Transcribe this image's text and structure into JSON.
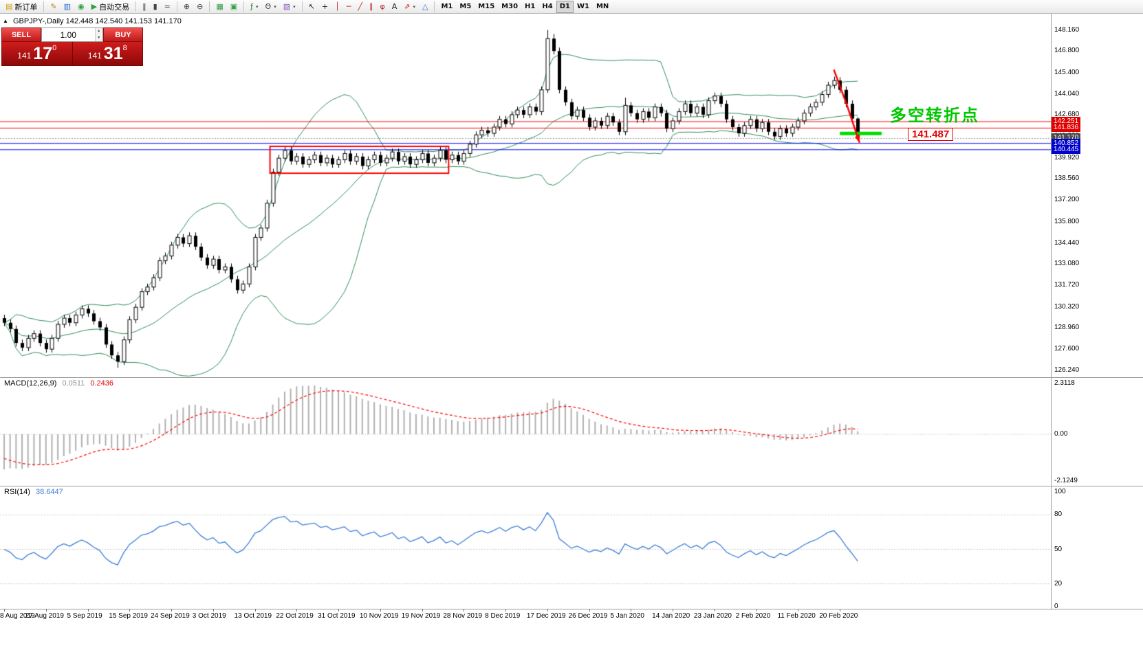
{
  "colors": {
    "bollinger": "#2E8B57",
    "hline_red": "#ff0000",
    "hline_blue": "#0000ff",
    "green_line": "#00dd00",
    "macd_hist": "#b0b0b0",
    "macd_signal": "#ff0000",
    "rsi_line": "#3b7dd8",
    "arrow": "#ff0000",
    "annotation_green": "#00c800"
  },
  "toolbar": {
    "groups": [
      {
        "items": [
          {
            "name": "new-order-button",
            "icon": "new-order-icon",
            "glyph": "▤",
            "color": "#d4a017",
            "label": "新订单"
          }
        ]
      },
      {
        "items": [
          {
            "name": "metaeditor-button",
            "icon": "metaeditor-icon",
            "glyph": "✎",
            "color": "#b8860b"
          },
          {
            "name": "market-watch-button",
            "icon": "market-watch-icon",
            "glyph": "▥",
            "color": "#2a6fd6"
          },
          {
            "name": "data-window-button",
            "icon": "data-window-icon",
            "glyph": "◉",
            "color": "#2f9e44"
          },
          {
            "name": "autotrading-button",
            "icon": "autotrading-play-icon",
            "glyph": "▶",
            "color": "#2f9e44",
            "label": "自动交易"
          }
        ]
      },
      {
        "items": [
          {
            "name": "bar-chart-button",
            "icon": "bar-chart-icon",
            "glyph": "‖",
            "color": "#444444"
          },
          {
            "name": "candlestick-chart-button",
            "icon": "candlestick-icon",
            "glyph": "▮",
            "color": "#444444"
          },
          {
            "name": "line-chart-button",
            "icon": "line-chart-icon",
            "glyph": "≈",
            "color": "#444444"
          }
        ]
      },
      {
        "items": [
          {
            "name": "zoom-in-button",
            "icon": "zoom-in-icon",
            "glyph": "⊕",
            "color": "#444444"
          },
          {
            "name": "zoom-out-button",
            "icon": "zoom-out-icon",
            "glyph": "⊖",
            "color": "#444444"
          }
        ]
      },
      {
        "items": [
          {
            "name": "tile-windows-button",
            "icon": "tile-windows-icon",
            "glyph": "▦",
            "color": "#2f9e44"
          },
          {
            "name": "arrange-windows-button",
            "icon": "arrange-windows-icon",
            "glyph": "▣",
            "color": "#2f9e44"
          }
        ]
      },
      {
        "items": [
          {
            "name": "indicators-button",
            "icon": "indicators-icon",
            "glyph": "ƒ",
            "color": "#1a7a2a",
            "caret": true
          },
          {
            "name": "periods-button",
            "icon": "periods-icon",
            "glyph": "Θ",
            "color": "#444444",
            "caret": true
          },
          {
            "name": "templates-button",
            "icon": "templates-icon",
            "glyph": "▧",
            "color": "#8658b8",
            "caret": true
          }
        ]
      },
      {
        "items": [
          {
            "name": "cursor-button",
            "icon": "cursor-icon",
            "glyph": "↖",
            "color": "#222222"
          },
          {
            "name": "crosshair-button",
            "icon": "crosshair-icon",
            "glyph": "+",
            "color": "#222222"
          },
          {
            "name": "vertical-line-button",
            "icon": "vertical-line-icon",
            "glyph": "│",
            "color": "#c22222"
          },
          {
            "name": "horizontal-line-button",
            "icon": "horizontal-line-icon",
            "glyph": "─",
            "color": "#c22222"
          },
          {
            "name": "trendline-button",
            "icon": "trendline-icon",
            "glyph": "╱",
            "color": "#c22222"
          },
          {
            "name": "channel-button",
            "icon": "channel-icon",
            "glyph": "∥",
            "color": "#c22222"
          },
          {
            "name": "fibonacci-button",
            "icon": "fibonacci-icon",
            "glyph": "φ",
            "color": "#c22222"
          },
          {
            "name": "text-button",
            "icon": "text-icon",
            "glyph": "A",
            "color": "#222222"
          },
          {
            "name": "arrows-button",
            "icon": "arrow-tools-icon",
            "glyph": "⇗",
            "color": "#c22222",
            "caret": true
          },
          {
            "name": "shapes-button",
            "icon": "shapes-icon",
            "glyph": "△",
            "color": "#2a6fd6"
          }
        ]
      },
      {
        "items": [
          {
            "name": "timeframe-m1-button",
            "label": "M1",
            "tf": true
          },
          {
            "name": "timeframe-m5-button",
            "label": "M5",
            "tf": true
          },
          {
            "name": "timeframe-m15-button",
            "label": "M15",
            "tf": true
          },
          {
            "name": "timeframe-m30-button",
            "label": "M30",
            "tf": true
          },
          {
            "name": "timeframe-h1-button",
            "label": "H1",
            "tf": true
          },
          {
            "name": "timeframe-h4-button",
            "label": "H4",
            "tf": true
          },
          {
            "name": "timeframe-d1-button",
            "label": "D1",
            "tf": true,
            "active": true
          },
          {
            "name": "timeframe-w1-button",
            "label": "W1",
            "tf": true
          },
          {
            "name": "timeframe-mn-button",
            "label": "MN",
            "tf": true
          }
        ]
      }
    ]
  },
  "chart": {
    "title": "GBPJPY-,Daily  142.448 142.540 141.153 141.170",
    "icons": {
      "collapse": "▲"
    },
    "one_click": {
      "sell_label": "SELL",
      "buy_label": "BUY",
      "volume": "1.00",
      "sell": {
        "small": "141",
        "big": "17",
        "sup": "0"
      },
      "buy": {
        "small": "141",
        "big": "31",
        "sup": "8"
      }
    },
    "price_axis_labels": [
      "148.160",
      "146.800",
      "145.400",
      "144.040",
      "142.680",
      "141.320",
      "139.920",
      "138.560",
      "137.200",
      "135.800",
      "134.440",
      "133.080",
      "131.720",
      "130.320",
      "128.960",
      "127.600",
      "126.240"
    ],
    "price_tags": [
      {
        "text": "142.251",
        "price": 142.251,
        "bg": "#e00000"
      },
      {
        "text": "141.836",
        "price": 141.836,
        "bg": "#e00000"
      },
      {
        "text": "141.170",
        "price": 141.17,
        "bg": "#4a4a4a"
      },
      {
        "text": "140.852",
        "price": 140.852,
        "bg": "#0000cc"
      },
      {
        "text": "140.445",
        "price": 140.445,
        "bg": "#0000cc"
      }
    ],
    "macd": {
      "label": "MACD(12,26,9)",
      "value1": "0.0511",
      "value2": "0.2436",
      "axis_labels": [
        "2.3118",
        "0.00",
        "-2.1249"
      ]
    },
    "rsi": {
      "label": "RSI(14)",
      "value": "38.6447",
      "axis_labels": [
        "100",
        "80",
        "50",
        "20",
        "0"
      ],
      "levels": [
        80,
        50,
        20
      ]
    },
    "annotations": {
      "turning_point_text": "多空转折点",
      "price_callout": "141.487"
    }
  },
  "chart_data": {
    "type": "candlestick",
    "symbol": "GBPJPY-",
    "timeframe": "Daily",
    "ohlc_title": {
      "open": 142.448,
      "high": 142.54,
      "low": 141.153,
      "close": 141.17
    },
    "bid": 141.17,
    "first_open": 129.6,
    "price_range": [
      125.75,
      149.2
    ],
    "closes": [
      129.3,
      128.9,
      128.0,
      127.7,
      128.3,
      128.6,
      128.0,
      127.6,
      128.3,
      129.2,
      129.6,
      129.3,
      129.8,
      130.2,
      129.9,
      129.4,
      129.0,
      127.9,
      127.2,
      126.8,
      128.2,
      129.5,
      130.3,
      131.3,
      131.6,
      132.2,
      133.3,
      133.6,
      134.3,
      134.8,
      134.4,
      134.9,
      134.2,
      133.5,
      133.0,
      133.4,
      132.7,
      132.9,
      132.1,
      131.4,
      131.8,
      132.9,
      134.8,
      135.4,
      137.0,
      139.0,
      139.9,
      140.4,
      139.7,
      140.0,
      139.5,
      139.8,
      140.1,
      139.6,
      139.9,
      139.5,
      139.8,
      140.2,
      139.7,
      140.0,
      139.4,
      139.8,
      140.1,
      139.6,
      139.9,
      140.3,
      139.7,
      140.0,
      139.5,
      139.8,
      140.2,
      139.6,
      139.9,
      140.4,
      139.8,
      140.1,
      139.7,
      140.2,
      140.8,
      141.4,
      141.7,
      141.5,
      141.9,
      142.4,
      142.1,
      142.7,
      143.0,
      142.7,
      143.2,
      142.9,
      144.3,
      147.6,
      146.8,
      144.3,
      143.5,
      142.6,
      143.0,
      142.5,
      141.9,
      142.3,
      142.0,
      142.6,
      142.2,
      141.6,
      143.3,
      142.8,
      142.4,
      142.9,
      142.5,
      143.2,
      142.8,
      141.8,
      142.3,
      142.9,
      143.4,
      142.8,
      143.2,
      142.7,
      143.6,
      143.9,
      143.4,
      142.4,
      141.9,
      141.5,
      142.0,
      142.4,
      141.8,
      142.2,
      141.6,
      141.3,
      141.8,
      141.5,
      141.9,
      142.3,
      142.8,
      143.2,
      143.5,
      144.0,
      144.6,
      144.9,
      144.3,
      143.4,
      142.45,
      141.17
    ],
    "wick_overrides": {
      "19": {
        "l": 126.4
      },
      "91": {
        "h": 148.16,
        "l": 144.1
      },
      "92": {
        "h": 147.9
      },
      "104": {
        "h": 143.8
      },
      "139": {
        "h": 145.15
      },
      "143": {
        "h": 142.54,
        "l": 141.153
      }
    },
    "x_labels": [
      "8 Aug 2019",
      "27 Aug 2019",
      "5 Sep 2019",
      "15 Sep 2019",
      "24 Sep 2019",
      "3 Oct 2019",
      "13 Oct 2019",
      "22 Oct 2019",
      "31 Oct 2019",
      "10 Nov 2019",
      "19 Nov 2019",
      "28 Nov 2019",
      "8 Dec 2019",
      "17 Dec 2019",
      "26 Dec 2019",
      "5 Jan 2020",
      "14 Jan 2020",
      "23 Jan 2020",
      "2 Feb 2020",
      "11 Feb 2020",
      "20 Feb 2020"
    ],
    "x_label_every": 7,
    "indicators": [
      {
        "name": "Bollinger Bands",
        "period": 20,
        "deviation": 2
      },
      {
        "name": "MACD",
        "params": [
          12,
          26,
          9
        ],
        "values_shown": [
          0.0511,
          0.2436
        ],
        "axis_range": [
          -2.1249,
          2.3118
        ]
      },
      {
        "name": "RSI",
        "params": [
          14
        ],
        "value_shown": 38.6447,
        "axis_range": [
          0,
          100
        ]
      }
    ],
    "overlays": {
      "hlines": [
        {
          "price": 142.251,
          "color": "#ff0000"
        },
        {
          "price": 141.836,
          "color": "#ff0000"
        },
        {
          "price": 140.852,
          "color": "#0000ff"
        },
        {
          "price": 140.445,
          "color": "#0000ff"
        }
      ],
      "rectangle": {
        "bar1": 45,
        "bar2": 74,
        "price_top": 140.66,
        "price_bottom": 138.93,
        "color": "#ff0000"
      },
      "green_line": {
        "price": 141.487,
        "bar1": 140,
        "bar2": 147,
        "color": "#00dd00"
      },
      "arrow": {
        "color": "#ff0000",
        "points": [
          [
            139.0,
            145.6
          ],
          [
            141.2,
            143.3
          ],
          [
            143.3,
            140.9
          ]
        ]
      }
    }
  }
}
